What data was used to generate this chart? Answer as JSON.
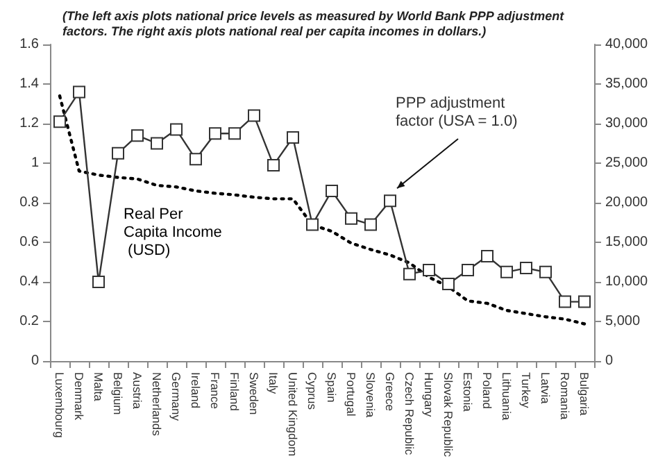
{
  "chart_data": {
    "type": "line",
    "title": "(The left axis plots national price levels as measured by World Bank PPP adjustment factors. The right axis plots national real per capita incomes in dollars.)",
    "categories": [
      "Luxembourg",
      "Denmark",
      "Malta",
      "Belgium",
      "Austria",
      "Netherlands",
      "Germany",
      "Ireland",
      "France",
      "Finland",
      "Sweden",
      "Italy",
      "United Kingdom",
      "Cyprus",
      "Spain",
      "Portugal",
      "Slovenia",
      "Greece",
      "Czech Republic",
      "Hungary",
      "Slovak Republic",
      "Estonia",
      "Poland",
      "Lithuania",
      "Turkey",
      "Latvia",
      "Romania",
      "Bulgaria"
    ],
    "series": [
      {
        "name": "PPP adjustment factor (USA = 1.0)",
        "color": "#333333",
        "marker": "square",
        "line_style": "solid",
        "values": [
          1.21,
          1.36,
          0.4,
          1.05,
          1.14,
          1.1,
          1.17,
          1.02,
          1.15,
          1.15,
          1.24,
          0.99,
          1.13,
          0.69,
          0.86,
          0.72,
          0.69,
          0.81,
          0.44,
          0.46,
          0.39,
          0.46,
          0.53,
          0.45,
          0.47,
          0.45,
          0.3,
          0.3
        ]
      },
      {
        "name": "Real Per Capita Income (USD)",
        "color": "#000000",
        "marker": "none",
        "line_style": "dotted",
        "axis": "y2",
        "values": [
          33500,
          24000,
          23500,
          23200,
          23000,
          22200,
          22000,
          21500,
          21200,
          21000,
          20700,
          20500,
          20500,
          17200,
          16400,
          14900,
          14100,
          13400,
          12400,
          10600,
          9400,
          7600,
          7300,
          6400,
          6000,
          5600,
          5300,
          4700
        ]
      }
    ],
    "ylim": [
      0,
      1.6
    ],
    "yticks": [
      0,
      0.2,
      0.4,
      0.6,
      0.8,
      1,
      1.2,
      1.4,
      1.6
    ],
    "y2lim": [
      0,
      40000
    ],
    "y2ticks": [
      0,
      {
        "value": 5000,
        "label": "5,000"
      },
      {
        "value": 10000,
        "label": "10,000"
      },
      {
        "value": 15000,
        "label": "15,000"
      },
      {
        "value": 20000,
        "label": "20,000"
      },
      {
        "value": 25000,
        "label": "25,000"
      },
      {
        "value": 30000,
        "label": "30,000"
      },
      {
        "value": 35000,
        "label": "35,000"
      },
      {
        "value": 40000,
        "label": "40,000"
      }
    ],
    "grid": false,
    "legend": false
  }
}
